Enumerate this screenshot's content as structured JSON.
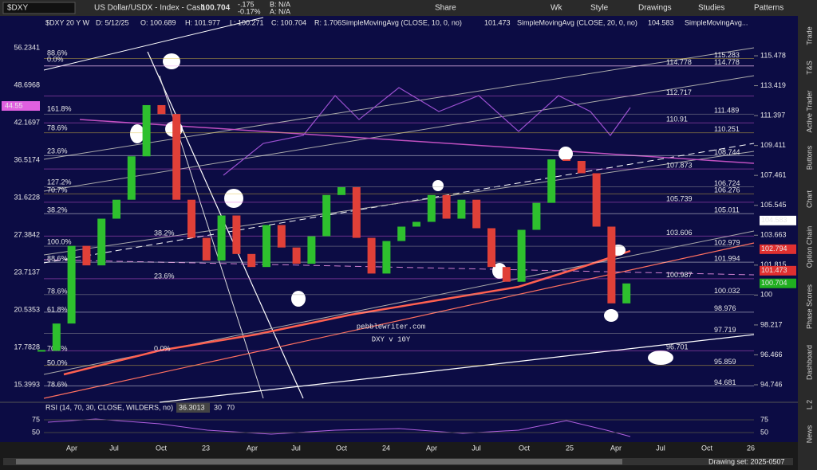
{
  "toolbar": {
    "symbol": "$DXY",
    "description": "US Dollar/USDX - Index - Cash",
    "last": "100.704",
    "change": "-.175",
    "change_pct": "-0.17%",
    "bid": "B: N/A",
    "ask": "A: N/A",
    "buttons": [
      "Share",
      "Wk",
      "Style",
      "Drawings",
      "Studies",
      "Patterns"
    ]
  },
  "chart_header": {
    "symbol": "$DXY 20 Y W",
    "date": "D: 5/12/25",
    "open": "O: 100.689",
    "high": "H: 101.977",
    "low": "L: 100.271",
    "close": "C: 100.704",
    "range": "R: 1.706",
    "sma10_label": "SimpleMovingAvg (CLOSE, 10, 0, no)",
    "sma10_value": "101.473",
    "sma20_label": "SimpleMovingAvg (CLOSE, 20, 0, no)",
    "sma20_value": "104.583",
    "sma_more": "SimpleMovingAvg..."
  },
  "left_axis": [
    56.2341,
    48.6968,
    42.1697,
    36.5174,
    31.6228,
    27.3842,
    23.7137,
    20.5353,
    17.7828,
    15.3993
  ],
  "right_axis": [
    115.478,
    113.419,
    111.397,
    109.411,
    107.461,
    105.545,
    103.663,
    101.815,
    100,
    98.217,
    96.466,
    94.746
  ],
  "fib_levels": [
    {
      "value": 115.283,
      "color": "#e0c040"
    },
    {
      "value": 114.778,
      "color": "#e060e0"
    },
    {
      "value": 114.778,
      "color": "#ffffff"
    },
    {
      "value": 112.717,
      "color": "#e060e0"
    },
    {
      "value": 111.489,
      "color": "#a0a0a0"
    },
    {
      "value": 110.91,
      "color": "#e060e0"
    },
    {
      "value": 110.251,
      "color": "#e0c040"
    },
    {
      "value": 108.744,
      "color": "#ffffff"
    },
    {
      "value": 107.873,
      "color": "#e060e0"
    },
    {
      "value": 106.724,
      "color": "#a0a0a0"
    },
    {
      "value": 106.276,
      "color": "#e0c040"
    },
    {
      "value": 105.739,
      "color": "#e060e0"
    },
    {
      "value": 105.011,
      "color": "#ffffff"
    },
    {
      "value": 103.606,
      "color": "#e060e0"
    },
    {
      "value": 102.979,
      "color": "#a0a0a0"
    },
    {
      "value": 101.994,
      "color": "#ffffff"
    },
    {
      "value": 100.987,
      "color": "#e060e0"
    },
    {
      "value": 100.032,
      "color": "#a0a0a0"
    },
    {
      "value": 98.976,
      "color": "#ffffff"
    },
    {
      "value": 97.719,
      "color": "#a0a0a0"
    },
    {
      "value": 96.701,
      "color": "#e060e0"
    },
    {
      "value": 95.859,
      "color": "#e0c040"
    },
    {
      "value": 94.681,
      "color": "#ffffff"
    }
  ],
  "fib_percent_labels": [
    "88.6%",
    "0.0%",
    "161.8%",
    "78.6%",
    "23.6%",
    "127.2%",
    "70.7%",
    "38.2%",
    "100.0%",
    "88.6%",
    "78.6%",
    "61.8%",
    "70.7%",
    "50.0%",
    "78.6%"
  ],
  "mid_percent_labels": [
    "38.2%",
    "23.6%",
    "0.0%"
  ],
  "price_flags": [
    {
      "value": 104.583,
      "color": "#ffffff"
    },
    {
      "value": 102.794,
      "color": "#e03030"
    },
    {
      "value": 101.473,
      "color": "#e03030"
    },
    {
      "value": 100.704,
      "color": "#20b020"
    }
  ],
  "left_flag": "44.55",
  "watermark": [
    "pebblewriter.com",
    "DXY v 10Y"
  ],
  "monthly_close": [
    96.7,
    98.3,
    103.0,
    101.8,
    104.7,
    105.9,
    108.7,
    112.1,
    111.5,
    105.9,
    103.5,
    102.1,
    104.9,
    102.5,
    101.7,
    104.3,
    102.9,
    101.9,
    103.6,
    106.2,
    106.7,
    103.5,
    101.3,
    103.3,
    104.2,
    104.5,
    106.2,
    104.7,
    105.9,
    104.1,
    101.7,
    100.8,
    104.0,
    105.7,
    108.5,
    108.4,
    107.6,
    104.2,
    99.5,
    100.7
  ],
  "rsi": {
    "label": "RSI (14, 70, 30, CLOSE, WILDERS, no)",
    "value": "36.3013",
    "levels": [
      "30",
      "70"
    ],
    "ticks": [
      75,
      50
    ]
  },
  "x_axis": [
    "Apr",
    "Jul",
    "Oct",
    "23",
    "Apr",
    "Jul",
    "Oct",
    "24",
    "Apr",
    "Jul",
    "Oct",
    "25",
    "Apr",
    "Jul",
    "Oct",
    "26"
  ],
  "footer": "Drawing set: 2025-0507",
  "side_tabs": [
    "Trade",
    "T&S",
    "Active Trader",
    "Buttons",
    "Chart",
    "Option Chain",
    "Phase Scores",
    "Dashboard",
    "L 2",
    "News"
  ]
}
